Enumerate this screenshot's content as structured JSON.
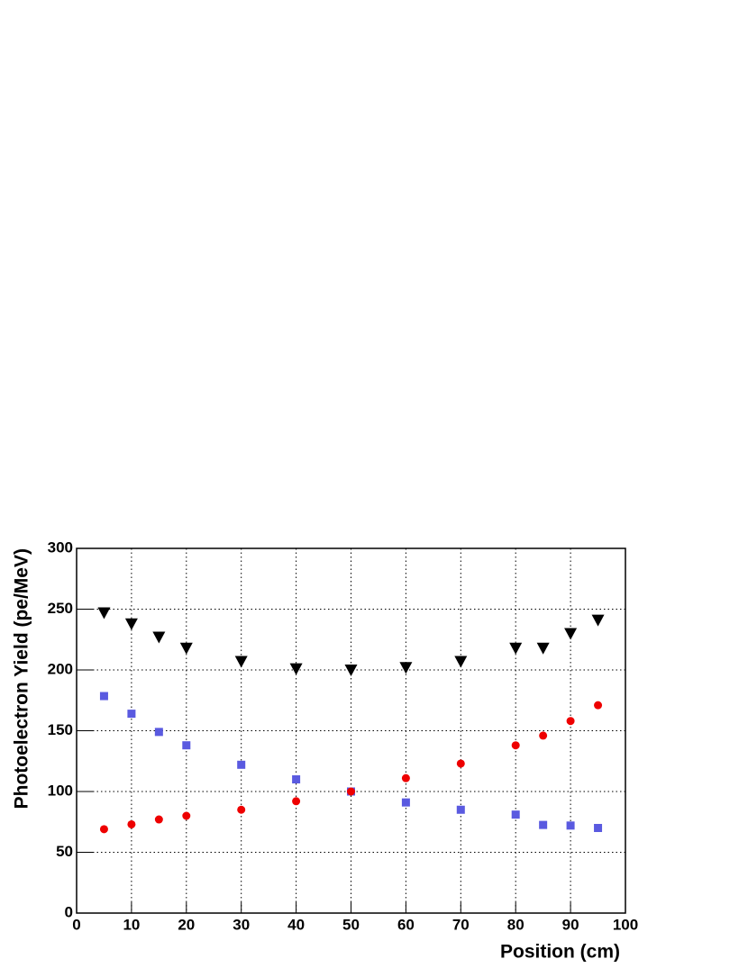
{
  "chart_data": {
    "type": "scatter",
    "x_label": "Position (cm)",
    "y_label": "Photoelectron Yield (pe/MeV)",
    "x": [
      5,
      10,
      15,
      20,
      30,
      40,
      50,
      60,
      70,
      80,
      85,
      90,
      95
    ],
    "series": [
      {
        "color": "#000000",
        "marker": "triangle-down",
        "values": [
          247,
          238,
          227,
          218,
          207,
          201,
          200,
          202,
          207,
          218,
          218,
          230,
          241
        ]
      },
      {
        "color": "#5a5ae0",
        "marker": "square",
        "values": [
          178.5,
          164,
          149,
          138,
          122,
          110,
          100,
          91,
          85,
          81,
          72.5,
          72,
          70
        ]
      },
      {
        "color": "#ee0000",
        "marker": "circle",
        "values": [
          69,
          73,
          77,
          80,
          85,
          92,
          100,
          111,
          123,
          138,
          146,
          158,
          171
        ]
      }
    ],
    "xlim": [
      0,
      100
    ],
    "xticks": [
      0,
      10,
      20,
      30,
      40,
      50,
      60,
      70,
      80,
      90,
      100
    ],
    "ylim": [
      0,
      300
    ],
    "yticks": [
      0,
      50,
      100,
      150,
      200,
      250,
      300
    ],
    "grid": true
  }
}
